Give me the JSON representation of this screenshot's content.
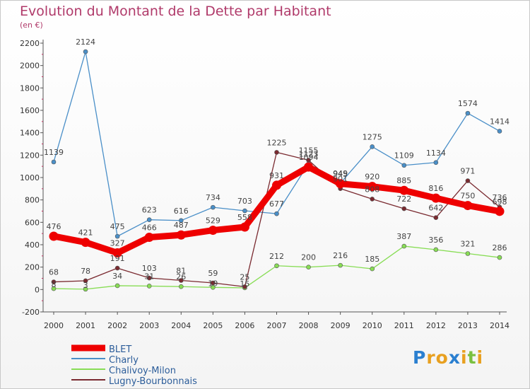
{
  "chart_data": {
    "type": "line",
    "title": "Evolution du Montant de la Dette par Habitant",
    "subtitle": "(en €)",
    "x": [
      "2000",
      "2001",
      "2002",
      "2003",
      "2004",
      "2005",
      "2006",
      "2007",
      "2008",
      "2009",
      "2010",
      "2011",
      "2012",
      "2013",
      "2014"
    ],
    "ylim": [
      -200,
      2200
    ],
    "yticks": [
      -200,
      0,
      200,
      400,
      600,
      800,
      1000,
      1200,
      1400,
      1600,
      1800,
      2000,
      2200
    ],
    "grid": false,
    "legend_position": "bottom-left",
    "series": [
      {
        "name": "BLET",
        "color": "#ee0000",
        "values": [
          476,
          421,
          327,
          466,
          487,
          529,
          558,
          931,
          1094,
          945,
          920,
          885,
          816,
          750,
          698
        ]
      },
      {
        "name": "Charly",
        "color": "#4a8fc8",
        "values": [
          1139,
          2124,
          475,
          623,
          616,
          734,
          703,
          677,
          1123,
          949,
          1275,
          1109,
          1134,
          1574,
          1414
        ]
      },
      {
        "name": "Chalivoy-Milon",
        "color": "#88dd55",
        "values": [
          8,
          3,
          34,
          31,
          26,
          19,
          15,
          212,
          200,
          216,
          185,
          387,
          356,
          321,
          286
        ]
      },
      {
        "name": "Lugny-Bourbonnais",
        "color": "#7a2a30",
        "values": [
          68,
          78,
          191,
          103,
          81,
          59,
          25,
          1225,
          1155,
          901,
          808,
          722,
          642,
          971,
          736
        ]
      }
    ]
  },
  "logo": {
    "letters": [
      "P",
      "r",
      "o",
      "x",
      "i",
      "t",
      "i"
    ],
    "colors": [
      "#2a7fd0",
      "#e8a020",
      "#e8a020",
      "#2a7fd0",
      "#e8a020",
      "#7ac040",
      "#e8a020"
    ]
  }
}
